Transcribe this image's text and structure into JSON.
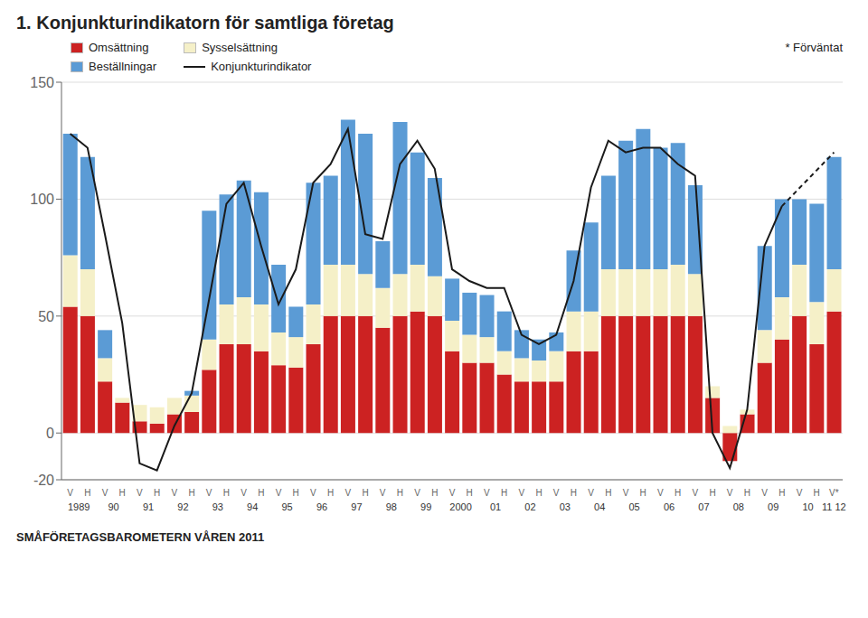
{
  "chart_data": {
    "type": "bar",
    "title": "1. Konjunkturindikatorn för samtliga företag",
    "footnote": "* Förväntat",
    "footer": "SMÅFÖRETAGSBAROMETERN VÅREN 2011",
    "stacked": true,
    "grid": true,
    "legend": "top",
    "categories": [
      "V",
      "H",
      "V",
      "H",
      "V",
      "H",
      "V",
      "H",
      "V",
      "H",
      "V",
      "H",
      "V",
      "H",
      "V",
      "H",
      "V",
      "H",
      "V",
      "H",
      "V",
      "H",
      "V",
      "H",
      "V",
      "H",
      "V",
      "H",
      "V",
      "H",
      "V",
      "H",
      "V",
      "H",
      "V",
      "H",
      "V",
      "H",
      "V",
      "H",
      "V",
      "H",
      "V",
      "H",
      "V*"
    ],
    "year_labels": [
      "1989",
      null,
      "90",
      null,
      "91",
      null,
      "92",
      null,
      "93",
      null,
      "94",
      null,
      "95",
      null,
      "96",
      null,
      "97",
      null,
      "98",
      null,
      "99",
      null,
      "2000",
      null,
      "01",
      null,
      "02",
      null,
      "03",
      null,
      "04",
      null,
      "05",
      null,
      "06",
      null,
      "07",
      null,
      "08",
      null,
      "09",
      null,
      "10",
      null,
      "11 12"
    ],
    "ylim": [
      -20,
      150
    ],
    "yticks": [
      -20,
      0,
      50,
      100,
      150
    ],
    "series": [
      {
        "name": "Omsättning",
        "type": "bar",
        "color": "#CC2222",
        "values": [
          54,
          50,
          22,
          13,
          5,
          4,
          8,
          9,
          27,
          38,
          38,
          35,
          29,
          28,
          38,
          50,
          50,
          50,
          45,
          50,
          52,
          50,
          35,
          30,
          30,
          25,
          22,
          22,
          22,
          35,
          35,
          50,
          50,
          50,
          50,
          50,
          50,
          15,
          -12,
          8,
          30,
          40,
          50,
          38,
          52
        ]
      },
      {
        "name": "Sysselsättning",
        "type": "bar",
        "color": "#F5F0C8",
        "values": [
          22,
          20,
          10,
          2,
          7,
          7,
          7,
          7,
          13,
          17,
          20,
          20,
          14,
          13,
          17,
          22,
          22,
          18,
          17,
          18,
          20,
          17,
          13,
          12,
          11,
          10,
          10,
          9,
          13,
          17,
          17,
          20,
          20,
          20,
          20,
          22,
          18,
          5,
          3,
          2,
          14,
          18,
          22,
          18,
          18
        ]
      },
      {
        "name": "Beställningar",
        "type": "bar",
        "color": "#5B9BD5",
        "values": [
          52,
          48,
          12,
          0,
          0,
          0,
          0,
          2,
          55,
          47,
          50,
          48,
          29,
          13,
          52,
          38,
          62,
          60,
          20,
          65,
          48,
          42,
          18,
          18,
          18,
          17,
          12,
          9,
          8,
          26,
          38,
          40,
          55,
          60,
          52,
          52,
          38,
          0,
          0,
          0,
          36,
          42,
          28,
          42,
          48
        ]
      },
      {
        "name": "Konjunkturindikator",
        "type": "line",
        "color": "#1A1A1A",
        "line_style": "solid",
        "values": [
          128,
          122,
          85,
          47,
          -13,
          -16,
          3,
          17,
          57,
          98,
          107,
          80,
          55,
          70,
          107,
          115,
          130,
          85,
          83,
          115,
          125,
          113,
          70,
          65,
          62,
          62,
          42,
          38,
          42,
          65,
          105,
          125,
          120,
          122,
          122,
          115,
          110,
          0,
          -15,
          10,
          80,
          97,
          null,
          null,
          null
        ]
      },
      {
        "name": "Konjunkturindikator",
        "type": "line",
        "color": "#1A1A1A",
        "line_style": "dashed",
        "values": [
          null,
          null,
          null,
          null,
          null,
          null,
          null,
          null,
          null,
          null,
          null,
          null,
          null,
          null,
          null,
          null,
          null,
          null,
          null,
          null,
          null,
          null,
          null,
          null,
          null,
          null,
          null,
          null,
          null,
          null,
          null,
          null,
          null,
          null,
          null,
          null,
          null,
          null,
          null,
          null,
          null,
          97,
          null,
          null,
          120
        ]
      }
    ]
  }
}
